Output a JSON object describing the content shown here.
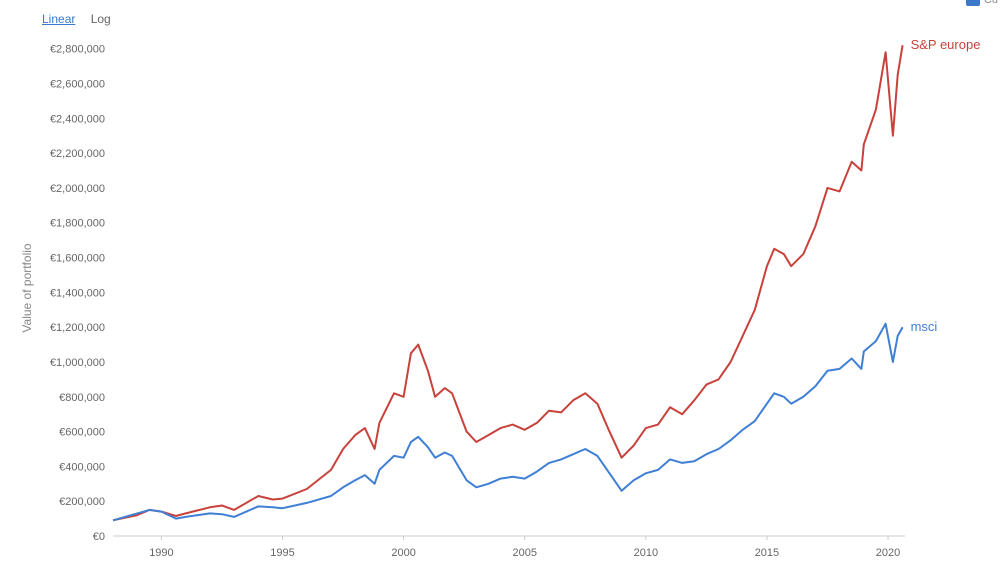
{
  "scale_toggle": {
    "linear": "Linear",
    "log": "Log"
  },
  "corner_check": {
    "label": "Cu"
  },
  "chart_data": {
    "type": "line",
    "title": "",
    "xlabel": "",
    "ylabel": "Value of portfolio",
    "xlim": [
      1988.0,
      2020.7
    ],
    "ylim": [
      0,
      2850000
    ],
    "grid": false,
    "x_ticks": [
      1990,
      1995,
      2000,
      2005,
      2010,
      2015,
      2020
    ],
    "y_ticks": [
      {
        "value": 0,
        "label": "€0"
      },
      {
        "value": 200000,
        "label": "€200,000"
      },
      {
        "value": 400000,
        "label": "€400,000"
      },
      {
        "value": 600000,
        "label": "€600,000"
      },
      {
        "value": 800000,
        "label": "€800,000"
      },
      {
        "value": 1000000,
        "label": "€1,000,000"
      },
      {
        "value": 1200000,
        "label": "€1,200,000"
      },
      {
        "value": 1400000,
        "label": "€1,400,000"
      },
      {
        "value": 1600000,
        "label": "€1,600,000"
      },
      {
        "value": 1800000,
        "label": "€1,800,000"
      },
      {
        "value": 2000000,
        "label": "€2,000,000"
      },
      {
        "value": 2200000,
        "label": "€2,200,000"
      },
      {
        "value": 2400000,
        "label": "€2,400,000"
      },
      {
        "value": 2600000,
        "label": "€2,600,000"
      },
      {
        "value": 2800000,
        "label": "€2,800,000"
      }
    ],
    "series": [
      {
        "name": "S&P europe",
        "color": "#c8423b",
        "points": [
          [
            1988.0,
            90000
          ],
          [
            1989.0,
            120000
          ],
          [
            1989.5,
            150000
          ],
          [
            1990.0,
            140000
          ],
          [
            1990.6,
            115000
          ],
          [
            1991.0,
            130000
          ],
          [
            1992.0,
            165000
          ],
          [
            1992.5,
            175000
          ],
          [
            1993.0,
            150000
          ],
          [
            1994.0,
            230000
          ],
          [
            1994.6,
            210000
          ],
          [
            1995.0,
            215000
          ],
          [
            1996.0,
            270000
          ],
          [
            1997.0,
            380000
          ],
          [
            1997.5,
            500000
          ],
          [
            1998.0,
            580000
          ],
          [
            1998.4,
            620000
          ],
          [
            1998.8,
            500000
          ],
          [
            1999.0,
            650000
          ],
          [
            1999.6,
            820000
          ],
          [
            2000.0,
            800000
          ],
          [
            2000.3,
            1050000
          ],
          [
            2000.6,
            1100000
          ],
          [
            2001.0,
            950000
          ],
          [
            2001.3,
            800000
          ],
          [
            2001.7,
            850000
          ],
          [
            2002.0,
            820000
          ],
          [
            2002.6,
            600000
          ],
          [
            2003.0,
            540000
          ],
          [
            2003.5,
            580000
          ],
          [
            2004.0,
            620000
          ],
          [
            2004.5,
            640000
          ],
          [
            2005.0,
            610000
          ],
          [
            2005.5,
            650000
          ],
          [
            2006.0,
            720000
          ],
          [
            2006.5,
            710000
          ],
          [
            2007.0,
            780000
          ],
          [
            2007.5,
            820000
          ],
          [
            2008.0,
            760000
          ],
          [
            2008.5,
            600000
          ],
          [
            2009.0,
            450000
          ],
          [
            2009.5,
            520000
          ],
          [
            2010.0,
            620000
          ],
          [
            2010.5,
            640000
          ],
          [
            2011.0,
            740000
          ],
          [
            2011.5,
            700000
          ],
          [
            2012.0,
            780000
          ],
          [
            2012.5,
            870000
          ],
          [
            2013.0,
            900000
          ],
          [
            2013.5,
            1000000
          ],
          [
            2014.0,
            1150000
          ],
          [
            2014.5,
            1300000
          ],
          [
            2015.0,
            1550000
          ],
          [
            2015.3,
            1650000
          ],
          [
            2015.7,
            1620000
          ],
          [
            2016.0,
            1550000
          ],
          [
            2016.5,
            1620000
          ],
          [
            2017.0,
            1780000
          ],
          [
            2017.5,
            2000000
          ],
          [
            2018.0,
            1980000
          ],
          [
            2018.5,
            2150000
          ],
          [
            2018.9,
            2100000
          ],
          [
            2019.0,
            2250000
          ],
          [
            2019.5,
            2450000
          ],
          [
            2019.9,
            2780000
          ],
          [
            2020.2,
            2300000
          ],
          [
            2020.4,
            2650000
          ],
          [
            2020.6,
            2820000
          ]
        ]
      },
      {
        "name": "msci",
        "color": "#3f7fd4",
        "points": [
          [
            1988.0,
            90000
          ],
          [
            1989.0,
            130000
          ],
          [
            1989.5,
            150000
          ],
          [
            1990.0,
            140000
          ],
          [
            1990.6,
            100000
          ],
          [
            1991.0,
            110000
          ],
          [
            1992.0,
            130000
          ],
          [
            1992.5,
            125000
          ],
          [
            1993.0,
            110000
          ],
          [
            1994.0,
            170000
          ],
          [
            1994.6,
            165000
          ],
          [
            1995.0,
            160000
          ],
          [
            1996.0,
            190000
          ],
          [
            1997.0,
            230000
          ],
          [
            1997.5,
            280000
          ],
          [
            1998.0,
            320000
          ],
          [
            1998.4,
            350000
          ],
          [
            1998.8,
            300000
          ],
          [
            1999.0,
            380000
          ],
          [
            1999.6,
            460000
          ],
          [
            2000.0,
            450000
          ],
          [
            2000.3,
            540000
          ],
          [
            2000.6,
            570000
          ],
          [
            2001.0,
            510000
          ],
          [
            2001.3,
            450000
          ],
          [
            2001.7,
            480000
          ],
          [
            2002.0,
            460000
          ],
          [
            2002.6,
            320000
          ],
          [
            2003.0,
            280000
          ],
          [
            2003.5,
            300000
          ],
          [
            2004.0,
            330000
          ],
          [
            2004.5,
            340000
          ],
          [
            2005.0,
            330000
          ],
          [
            2005.5,
            370000
          ],
          [
            2006.0,
            420000
          ],
          [
            2006.5,
            440000
          ],
          [
            2007.0,
            470000
          ],
          [
            2007.5,
            500000
          ],
          [
            2008.0,
            460000
          ],
          [
            2008.5,
            360000
          ],
          [
            2009.0,
            260000
          ],
          [
            2009.5,
            320000
          ],
          [
            2010.0,
            360000
          ],
          [
            2010.5,
            380000
          ],
          [
            2011.0,
            440000
          ],
          [
            2011.5,
            420000
          ],
          [
            2012.0,
            430000
          ],
          [
            2012.5,
            470000
          ],
          [
            2013.0,
            500000
          ],
          [
            2013.5,
            550000
          ],
          [
            2014.0,
            610000
          ],
          [
            2014.5,
            660000
          ],
          [
            2015.0,
            760000
          ],
          [
            2015.3,
            820000
          ],
          [
            2015.7,
            800000
          ],
          [
            2016.0,
            760000
          ],
          [
            2016.5,
            800000
          ],
          [
            2017.0,
            860000
          ],
          [
            2017.5,
            950000
          ],
          [
            2018.0,
            960000
          ],
          [
            2018.5,
            1020000
          ],
          [
            2018.9,
            960000
          ],
          [
            2019.0,
            1060000
          ],
          [
            2019.5,
            1120000
          ],
          [
            2019.9,
            1220000
          ],
          [
            2020.2,
            1000000
          ],
          [
            2020.4,
            1150000
          ],
          [
            2020.6,
            1200000
          ]
        ]
      }
    ]
  }
}
